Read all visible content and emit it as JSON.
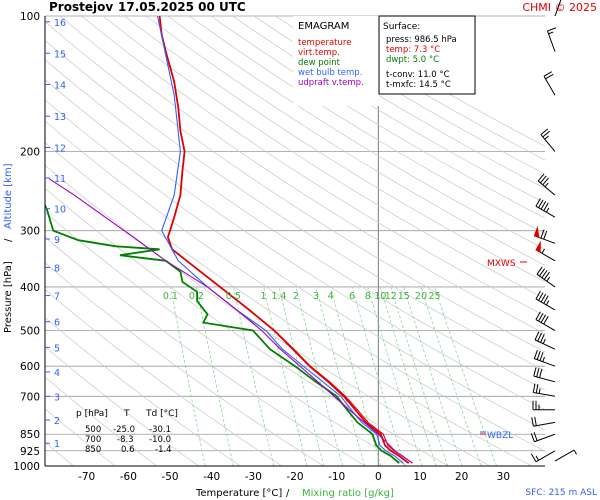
{
  "header": {
    "station": "Prostejov",
    "datetime": "17.05.2025 00 UTC",
    "credit": "CHMI © 2025"
  },
  "chart_data": {
    "type": "line",
    "title": "EMAGRAM",
    "xlabel": "Temperature [°C]",
    "xlabel_sep": "/",
    "xlabel2": "Mixing ratio [g/kg]",
    "ylabel": "Pressure [hPa]",
    "ylabel_sep": "/",
    "ylabel2": "Altitude [km]",
    "xlim": [
      -80,
      40
    ],
    "ylim": [
      1000,
      100
    ],
    "yscale": "log",
    "x_ticks": [
      -70,
      -60,
      -50,
      -40,
      -30,
      -20,
      -10,
      0,
      10,
      20,
      30
    ],
    "y_ticks": [
      100,
      200,
      300,
      400,
      500,
      600,
      700,
      850,
      925,
      1000
    ],
    "y_tick_labels": [
      "100",
      "200",
      "300",
      "400",
      "500",
      "600",
      "700",
      "850",
      "925",
      "1000"
    ],
    "altitude_ticks_km": [
      {
        "label": "1",
        "p": 890
      },
      {
        "label": "2",
        "p": 790
      },
      {
        "label": "3",
        "p": 700
      },
      {
        "label": "4",
        "p": 618
      },
      {
        "label": "5",
        "p": 545
      },
      {
        "label": "6",
        "p": 478
      },
      {
        "label": "7",
        "p": 418
      },
      {
        "label": "8",
        "p": 362
      },
      {
        "label": "9",
        "p": 313
      },
      {
        "label": "10",
        "p": 268
      },
      {
        "label": "11",
        "p": 229
      },
      {
        "label": "12",
        "p": 196
      },
      {
        "label": "13",
        "p": 167
      },
      {
        "label": "14",
        "p": 142
      },
      {
        "label": "15",
        "p": 121
      },
      {
        "label": "16",
        "p": 103
      }
    ],
    "mixing_ratio_labels": [
      "0.1",
      "0.2",
      "0.5",
      "1",
      "1.4",
      "2",
      "3",
      "4",
      "6",
      "8",
      "10",
      "12",
      "15",
      "20",
      "25"
    ],
    "legend": {
      "title": "EMAGRAM",
      "items": [
        {
          "label": "temperature",
          "color": "#e00000"
        },
        {
          "label": "virt.temp.",
          "color": "#e00000"
        },
        {
          "label": "dew point",
          "color": "#008000"
        },
        {
          "label": "wet bulb temp.",
          "color": "#3060ff"
        },
        {
          "label": "udpraft v.temp.",
          "color": "#a000c0"
        }
      ]
    },
    "surface": {
      "title": "Surface:",
      "lines": [
        {
          "text": "press: 986.5 hPa",
          "color": "#000000"
        },
        {
          "text": "temp: 7.3 °C",
          "color": "#e00000"
        },
        {
          "text": "dwpt: 5.0 °C",
          "color": "#008000"
        },
        {
          "text": "t-conv: 11.0 °C",
          "color": "#000000"
        },
        {
          "text": "t-mxfc: 14.5 °C",
          "color": "#000000"
        }
      ]
    },
    "table": {
      "headers": [
        "p [hPa]",
        "T",
        "Td [°C]"
      ],
      "rows": [
        [
          "500",
          "-25.0",
          "-30.1"
        ],
        [
          "700",
          "-8.3",
          "-10.0"
        ],
        [
          "850",
          "0.6",
          "-1.4"
        ]
      ]
    },
    "annotations": {
      "mxws": "MXWS",
      "wbzl": "WBZL",
      "sfc": "SFC: 215 m ASL"
    },
    "series": [
      {
        "name": "temperature",
        "color": "#e00000",
        "points": [
          [
            986,
            7.3
          ],
          [
            950,
            5.0
          ],
          [
            925,
            3.0
          ],
          [
            900,
            1.6
          ],
          [
            850,
            0.6
          ],
          [
            800,
            -3.0
          ],
          [
            750,
            -5.5
          ],
          [
            700,
            -8.3
          ],
          [
            650,
            -12.0
          ],
          [
            600,
            -16.5
          ],
          [
            550,
            -20.5
          ],
          [
            500,
            -25.0
          ],
          [
            450,
            -31.0
          ],
          [
            400,
            -38.0
          ],
          [
            350,
            -46.0
          ],
          [
            330,
            -49.5
          ],
          [
            310,
            -50.5
          ],
          [
            300,
            -50.0
          ],
          [
            280,
            -49.0
          ],
          [
            250,
            -47.5
          ],
          [
            220,
            -47.0
          ],
          [
            200,
            -46.5
          ],
          [
            180,
            -47.5
          ],
          [
            160,
            -48.0
          ],
          [
            140,
            -49.0
          ],
          [
            120,
            -51.0
          ],
          [
            110,
            -52.0
          ],
          [
            100,
            -52.5
          ]
        ]
      },
      {
        "name": "virt.temp.",
        "color": "#e00000",
        "points": [
          [
            986,
            8.2
          ],
          [
            950,
            5.8
          ],
          [
            925,
            3.8
          ],
          [
            900,
            2.3
          ],
          [
            850,
            1.2
          ],
          [
            800,
            -2.5
          ],
          [
            750,
            -5.0
          ],
          [
            700,
            -7.9
          ],
          [
            650,
            -11.7
          ],
          [
            600,
            -16.3
          ],
          [
            550,
            -20.3
          ],
          [
            500,
            -24.9
          ],
          [
            450,
            -30.9
          ],
          [
            400,
            -37.9
          ],
          [
            350,
            -46.0
          ],
          [
            330,
            -49.5
          ],
          [
            310,
            -50.5
          ],
          [
            300,
            -50.0
          ],
          [
            280,
            -49.0
          ],
          [
            250,
            -47.5
          ],
          [
            220,
            -47.0
          ],
          [
            200,
            -46.5
          ],
          [
            180,
            -47.5
          ],
          [
            160,
            -48.0
          ],
          [
            140,
            -49.0
          ],
          [
            120,
            -51.0
          ],
          [
            110,
            -52.0
          ],
          [
            100,
            -52.5
          ]
        ]
      },
      {
        "name": "dew point",
        "color": "#008000",
        "points": [
          [
            986,
            5.0
          ],
          [
            950,
            3.0
          ],
          [
            925,
            0.8
          ],
          [
            900,
            -0.5
          ],
          [
            850,
            -1.4
          ],
          [
            800,
            -5.0
          ],
          [
            750,
            -7.5
          ],
          [
            700,
            -10.0
          ],
          [
            650,
            -15.0
          ],
          [
            600,
            -20.0
          ],
          [
            550,
            -26.0
          ],
          [
            500,
            -30.1
          ],
          [
            480,
            -42.0
          ],
          [
            460,
            -41.0
          ],
          [
            430,
            -43.5
          ],
          [
            410,
            -43.5
          ],
          [
            390,
            -47.0
          ],
          [
            370,
            -47.5
          ],
          [
            350,
            -51.0
          ],
          [
            340,
            -62.0
          ],
          [
            330,
            -52.5
          ],
          [
            325,
            -63.0
          ],
          [
            315,
            -72.0
          ],
          [
            300,
            -78.0
          ],
          [
            270,
            -79.5
          ],
          [
            240,
            -82.0
          ]
        ]
      },
      {
        "name": "wet bulb temp.",
        "color": "#3060ff",
        "points": [
          [
            986,
            6.0
          ],
          [
            950,
            3.9
          ],
          [
            925,
            1.8
          ],
          [
            900,
            0.4
          ],
          [
            850,
            -0.4
          ],
          [
            800,
            -4.0
          ],
          [
            750,
            -6.5
          ],
          [
            700,
            -9.0
          ],
          [
            650,
            -13.3
          ],
          [
            600,
            -18.0
          ],
          [
            550,
            -23.0
          ],
          [
            500,
            -27.0
          ],
          [
            450,
            -34.0
          ],
          [
            400,
            -41.0
          ],
          [
            350,
            -48.0
          ],
          [
            300,
            -52.0
          ],
          [
            250,
            -49.0
          ],
          [
            200,
            -47.5
          ],
          [
            150,
            -49.0
          ],
          [
            100,
            -53.0
          ]
        ]
      },
      {
        "name": "udpraft v.temp.",
        "color": "#a000c0",
        "points": [
          [
            986,
            8.2
          ],
          [
            925,
            4.0
          ],
          [
            850,
            0.0
          ],
          [
            750,
            -7.0
          ],
          [
            650,
            -14.5
          ],
          [
            550,
            -23.5
          ],
          [
            500,
            -28.0
          ],
          [
            450,
            -34.0
          ],
          [
            400,
            -41.0
          ],
          [
            350,
            -51.0
          ],
          [
            300,
            -61.0
          ],
          [
            250,
            -73.0
          ],
          [
            230,
            -79.0
          ]
        ]
      }
    ],
    "wind_barbs": [
      {
        "p": 975,
        "dir": 60,
        "kt": 5
      },
      {
        "p": 925,
        "dir": 240,
        "kt": 15
      },
      {
        "p": 850,
        "dir": 250,
        "kt": 20
      },
      {
        "p": 800,
        "dir": 260,
        "kt": 20
      },
      {
        "p": 750,
        "dir": 270,
        "kt": 25
      },
      {
        "p": 700,
        "dir": 280,
        "kt": 25
      },
      {
        "p": 650,
        "dir": 285,
        "kt": 30
      },
      {
        "p": 600,
        "dir": 290,
        "kt": 35
      },
      {
        "p": 550,
        "dir": 295,
        "kt": 35
      },
      {
        "p": 500,
        "dir": 300,
        "kt": 40
      },
      {
        "p": 450,
        "dir": 300,
        "kt": 45
      },
      {
        "p": 400,
        "dir": 305,
        "kt": 45
      },
      {
        "p": 350,
        "dir": 300,
        "kt": 55
      },
      {
        "p": 320,
        "dir": 290,
        "kt": 70
      },
      {
        "p": 280,
        "dir": 300,
        "kt": 45
      },
      {
        "p": 250,
        "dir": 310,
        "kt": 35
      },
      {
        "p": 200,
        "dir": 320,
        "kt": 25
      },
      {
        "p": 150,
        "dir": 330,
        "kt": 20
      },
      {
        "p": 120,
        "dir": 340,
        "kt": 15
      },
      {
        "p": 100,
        "dir": 20,
        "kt": 10
      }
    ]
  }
}
